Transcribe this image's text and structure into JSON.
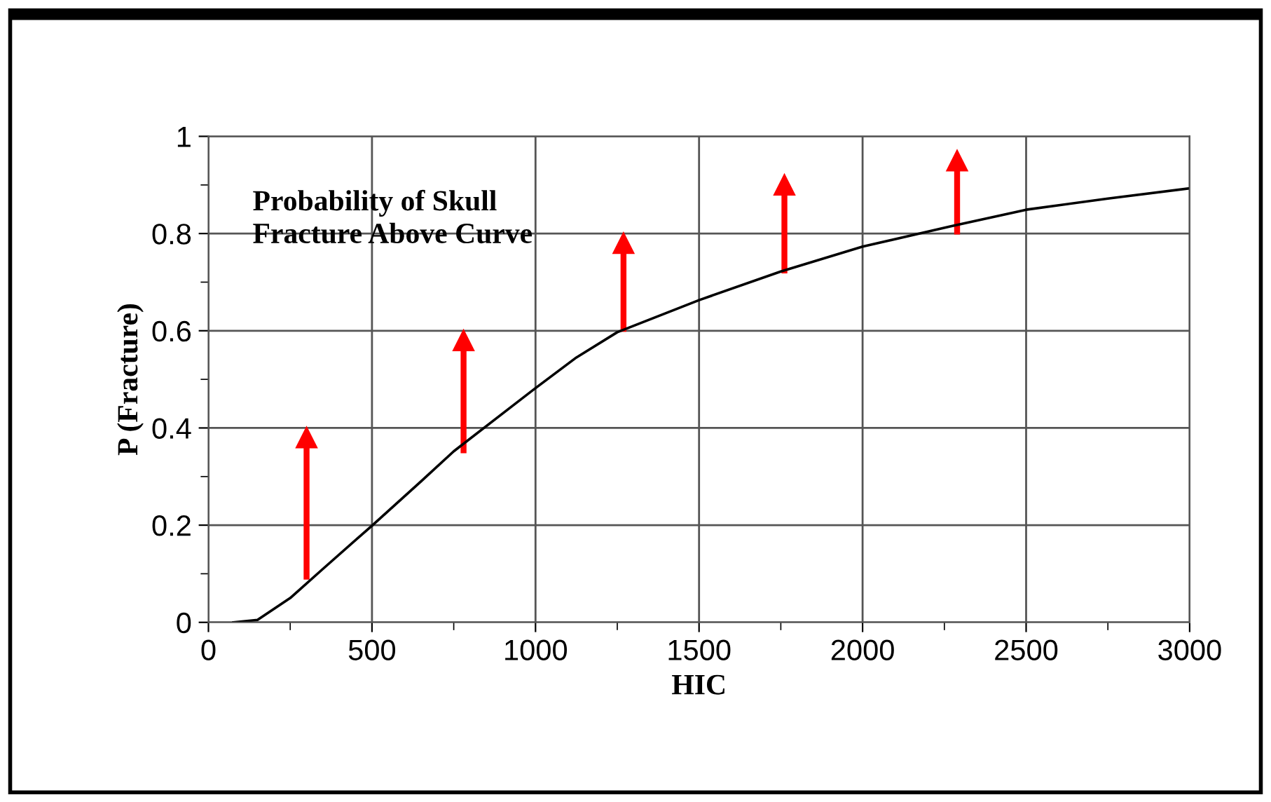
{
  "chart_data": {
    "type": "line",
    "x": [
      76,
      150,
      250,
      350,
      500,
      650,
      750,
      900,
      1000,
      1125,
      1250,
      1500,
      1750,
      2000,
      2270,
      2500,
      2750,
      3000
    ],
    "series": [
      {
        "color": "#000000",
        "values": [
          0,
          0.005,
          0.05,
          0.11,
          0.199,
          0.29,
          0.352,
          0.43,
          0.482,
          0.545,
          0.597,
          0.663,
          0.722,
          0.773,
          0.815,
          0.849,
          0.872,
          0.893
        ]
      }
    ],
    "xlabel": "HIC",
    "ylabel": "P (Fracture)",
    "xlim": [
      0,
      3000
    ],
    "ylim": [
      0,
      1
    ],
    "xticks": [
      0,
      500,
      1000,
      1500,
      2000,
      2500,
      3000
    ],
    "yticks": [
      0,
      0.2,
      0.4,
      0.6,
      0.8,
      1
    ],
    "grid": true,
    "legend": false,
    "marker": "none",
    "line_style": "solid",
    "annotations": [
      "Probability of Skull\nFracture Above Curve"
    ]
  }
}
